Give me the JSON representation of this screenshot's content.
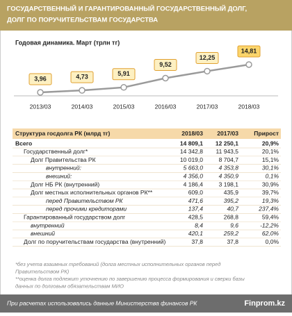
{
  "header": {
    "title_lines": [
      "ГОСУДАРСТВЕННЫЙ И ГАРАНТИРОВАННЫЙ ГОСУДАРСТВЕННЫЙ ДОЛГ,",
      "ДОЛГ ПО ПОРУЧИТЕЛЬСТВАМ ГОСУДАРСТВА"
    ]
  },
  "chart_data": {
    "type": "line",
    "subtitle": "Годовая динамика. Март (трлн тг)",
    "categories": [
      "2013/03",
      "2014/03",
      "2015/03",
      "2016/03",
      "2017/03",
      "2018/03"
    ],
    "series": [
      {
        "color": "#9a9a9a",
        "values": [
          3.96,
          4.73,
          5.91,
          9.52,
          12.25,
          14.81
        ],
        "value_labels": [
          "3,96",
          "4,73",
          "5,91",
          "9,52",
          "12,25",
          "14,81"
        ]
      }
    ]
  },
  "table": {
    "columns": [
      "Структура госдолга РК (млрд тг)",
      "2018/03",
      "2017/03",
      "Прирост"
    ],
    "rows": [
      [
        "Всего",
        "14 809,1",
        "12 250,1",
        "20,9%"
      ],
      [
        "Государственный долг*",
        "14 342,8",
        "11 943,5",
        "20,1%"
      ],
      [
        "Долг Правительства РК",
        "10 019,0",
        "8 704,7",
        "15,1%"
      ],
      [
        "внутренний:",
        "5 663,0",
        "4 353,8",
        "30,1%"
      ],
      [
        "внешний:",
        "4 356,0",
        "4 350,9",
        "0,1%"
      ],
      [
        "Долг НБ РК (внутренний)",
        "4 186,4",
        "3 198,1",
        "30,9%"
      ],
      [
        "Долг местных исполнительных органов РК**",
        "609,0",
        "435,9",
        "39,7%"
      ],
      [
        "перед Правительством РК",
        "471,6",
        "395,2",
        "19,3%"
      ],
      [
        "перед прочими кредиторами",
        "137,4",
        "40,7",
        "237,4%"
      ],
      [
        "Гарантированный государством долг",
        "428,5",
        "268,8",
        "59,4%"
      ],
      [
        "внутренний",
        "8,4",
        "9,6",
        "-12,2%"
      ],
      [
        "внешний",
        "420,1",
        "259,2",
        "62,0%"
      ],
      [
        "Долг по поручительствам государства (внутренний)",
        "37,8",
        "37,8",
        "0,0%"
      ]
    ]
  },
  "footnotes": [
    "*без учета взаимных требований (долга местных исполнительных органов перед",
    "Правительством РК)",
    "**оценка долга подлежит уточнению по завершению процесса формирования и сверки базы",
    "данных по долговым обязательствам МИО"
  ],
  "footer": {
    "source": "При расчетах использовались данные Министерства финансов РК",
    "brand": "Finprom.kz"
  }
}
